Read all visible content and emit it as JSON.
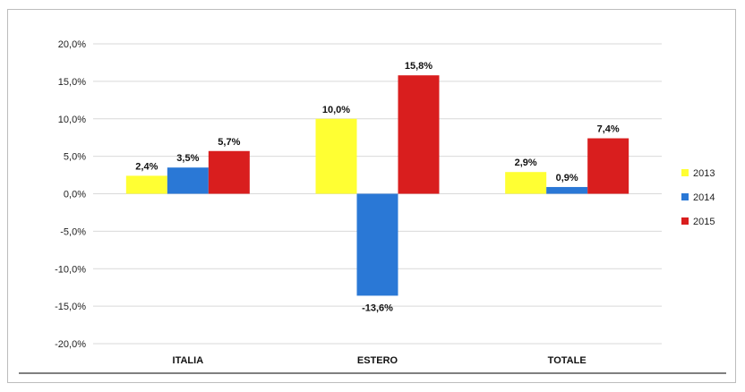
{
  "chart_data": {
    "type": "bar",
    "categories": [
      "ITALIA",
      "ESTERO",
      "TOTALE"
    ],
    "series": [
      {
        "name": "2013",
        "values": [
          2.4,
          10.0,
          2.9
        ],
        "labels": [
          "2,4%",
          "10,0%",
          "2,9%"
        ],
        "color": "#ffff33"
      },
      {
        "name": "2014",
        "values": [
          3.5,
          -13.6,
          0.9
        ],
        "labels": [
          "3,5%",
          "-13,6%",
          "0,9%"
        ],
        "color": "#2a78d6"
      },
      {
        "name": "2015",
        "values": [
          5.7,
          15.8,
          7.4
        ],
        "labels": [
          "5,7%",
          "15,8%",
          "7,4%"
        ],
        "color": "#d91e1e"
      }
    ],
    "ylim": [
      -20,
      20
    ],
    "yticks": [
      20,
      15,
      10,
      5,
      0,
      -5,
      -10,
      -15,
      -20
    ],
    "ytick_labels": [
      "20,0%",
      "15,0%",
      "10,0%",
      "5,0%",
      "0,0%",
      "-5,0%",
      "-10,0%",
      "-15,0%",
      "-20,0%"
    ],
    "grid": true,
    "legend": "right"
  }
}
